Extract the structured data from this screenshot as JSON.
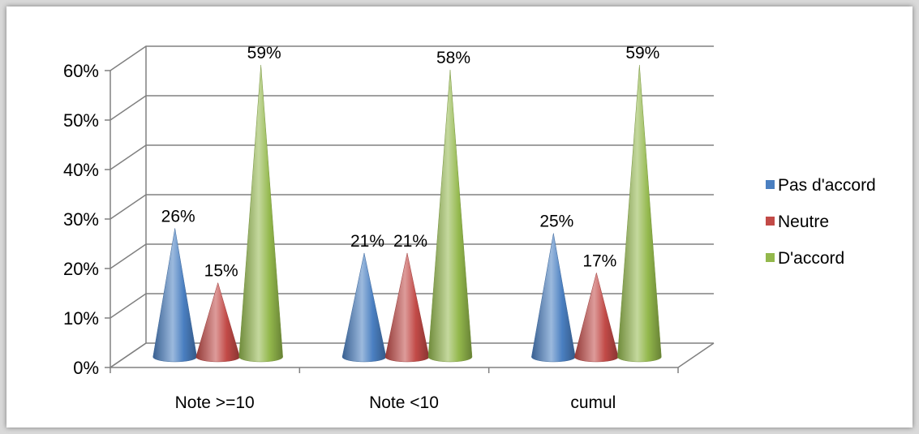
{
  "chart_data": {
    "type": "bar",
    "style": "3d-cone",
    "categories": [
      "Note >=10",
      "Note <10",
      "cumul"
    ],
    "series": [
      {
        "name": "Pas d'accord",
        "values": [
          26,
          21,
          25
        ],
        "labels": [
          "26%",
          "21%",
          "25%"
        ],
        "color": "#4a7fc1"
      },
      {
        "name": "Neutre",
        "values": [
          15,
          21,
          17
        ],
        "labels": [
          "15%",
          "21%",
          "17%"
        ],
        "color": "#c24a47"
      },
      {
        "name": "D'accord",
        "values": [
          59,
          58,
          59
        ],
        "labels": [
          "59%",
          "58%",
          "59%"
        ],
        "color": "#93b84c"
      }
    ],
    "y_ticks": [
      "0%",
      "10%",
      "20%",
      "30%",
      "40%",
      "50%",
      "60%"
    ],
    "ylim": [
      0,
      60
    ],
    "grid": true,
    "legend_position": "right"
  }
}
